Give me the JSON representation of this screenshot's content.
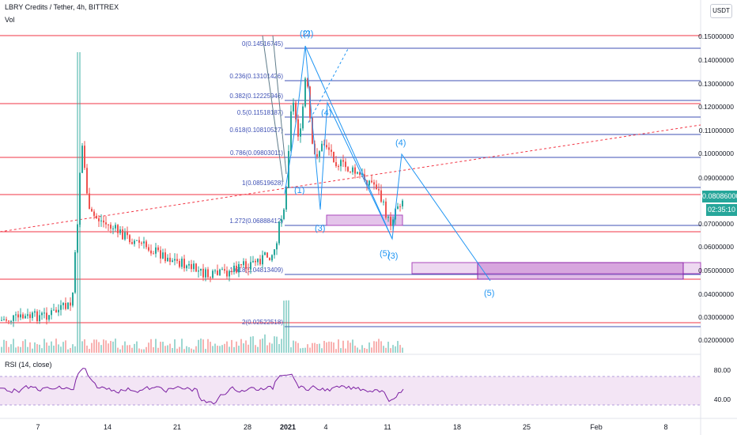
{
  "header": {
    "title": "LBRY Credits / Tether, 4h, BITTREX",
    "volume_label": "Vol",
    "currency_button": "USDT"
  },
  "price_scale": [
    "0.15000000",
    "0.14000000",
    "0.13000000",
    "0.12000000",
    "0.11000000",
    "0.10000000",
    "0.09000000",
    "0.07000000",
    "0.06000000",
    "0.05000000",
    "0.04000000",
    "0.03000000",
    "0.02000000"
  ],
  "current_price": "0.08086000",
  "countdown": "02:35:10",
  "rsi": {
    "label": "RSI (14, close)",
    "scale": [
      "80.00",
      "40.00"
    ]
  },
  "time_axis": [
    "7",
    "14",
    "21",
    "28",
    "2021",
    "4",
    "11",
    "18",
    "25",
    "Feb",
    "8"
  ],
  "fib_levels": [
    "0(0.14516745)",
    "0.236(0.13101426)",
    "0.382(0.12225946)",
    "0.5(0.11518187)",
    "0.618(0.10810527)",
    "0.786(0.09803011)",
    "1(0.08519628)",
    "1.272(0.06888412)",
    "1.618(0.04813409)",
    "2(0.02522518)"
  ],
  "wave_labels": [
    "(2)",
    "(2)",
    "(4)",
    "(4)",
    "(1)",
    "(3)",
    "(5)",
    "(3)",
    "(5)"
  ],
  "colors": {
    "up": "#26a69a",
    "down": "#ef5350",
    "fib_line": "#3f51b5",
    "horizontal_level": "#f23645",
    "wave": "#2196f3",
    "zone": "#ce93d8",
    "rsi_line": "#7b1fa2",
    "rsi_band": "#f3e5f5"
  }
}
